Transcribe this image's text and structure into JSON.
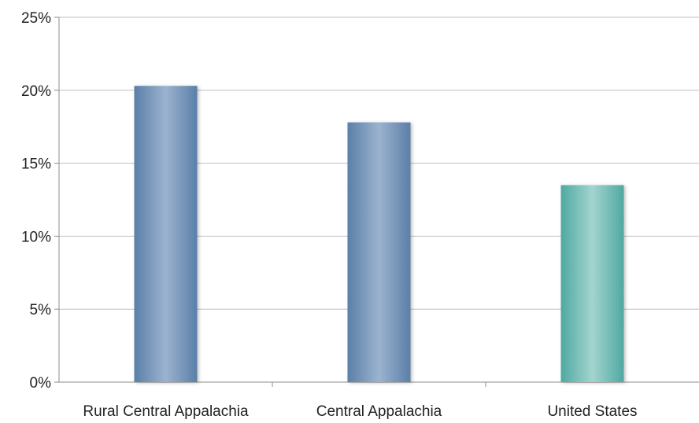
{
  "chart_data": {
    "type": "bar",
    "categories": [
      "Rural Central Appalachia",
      "Central Appalachia",
      "United States"
    ],
    "values": [
      20.3,
      17.8,
      13.5
    ],
    "y_tick_labels": [
      "0%",
      "5%",
      "10%",
      "15%",
      "20%",
      "25%"
    ],
    "y_ticks": [
      0,
      5,
      10,
      15,
      20,
      25
    ],
    "ylim": [
      0,
      25
    ],
    "grid": true,
    "legend": "none",
    "colors": {
      "regional_bar_edge": "#5B7FA8",
      "regional_bar_center": "#9BB3CF",
      "us_bar_edge": "#4FA9A2",
      "us_bar_center": "#A3D4CF",
      "gridline": "#BFBFBF",
      "axis": "#8C8C8C"
    }
  }
}
